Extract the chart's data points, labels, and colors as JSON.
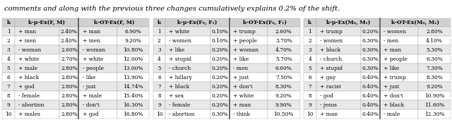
{
  "title_text": "comments and along with the previous three changes cumulatively explains 0.2% of the shift.",
  "tables": [
    {
      "col1_header": "k",
      "col2_header": "k-μ-Ex(F, M)",
      "col3_header": "k-OT-Ex(F, M)",
      "rows": [
        [
          1,
          "+ man",
          "2.40%",
          "+ man",
          "6.90%"
        ],
        [
          2,
          "+ men",
          "2.40%",
          "+ men",
          "9.20%"
        ],
        [
          3,
          "- woman",
          "2.60%",
          "- woman",
          "10.80%"
        ],
        [
          4,
          "+ white",
          "2.70%",
          "+ white",
          "12.00%"
        ],
        [
          5,
          "+ male",
          "2.80%",
          "- people",
          "13.00%"
        ],
        [
          6,
          "+ black",
          "2.80%",
          "- like",
          "13.90%"
        ],
        [
          7,
          "+ god",
          "2.80%",
          "- just",
          "14.74%"
        ],
        [
          8,
          "- female",
          "2.80%",
          "+ male",
          "15.40%"
        ],
        [
          9,
          "- abortion",
          "2.80%",
          "- don't",
          "16.30%"
        ],
        [
          10,
          "+ males",
          "2.80%",
          "+ god",
          "16.80%"
        ]
      ]
    },
    {
      "col1_header": "k",
      "col2_header": "k-μ-Ex(F₀, F₁)",
      "col3_header": "k-OT-Ex(F₀, F₁)",
      "rows": [
        [
          1,
          "+ white",
          "0.10%",
          "+ trump",
          "2.60%"
        ],
        [
          2,
          "- women",
          "0.10%",
          "+ people",
          "3.70%"
        ],
        [
          3,
          "+ like",
          "0.20%",
          "+ woman",
          "4.70%"
        ],
        [
          4,
          "+ stupid",
          "0.20%",
          "+ like",
          "5.70%"
        ],
        [
          5,
          "- church",
          "0.20%",
          "- men",
          "6.60%"
        ],
        [
          6,
          "+ hillary",
          "0.20%",
          "+ just",
          "7.50%"
        ],
        [
          7,
          "+ black",
          "0.20%",
          "+ don't",
          "8.30%"
        ],
        [
          8,
          "+ sex",
          "0.20%",
          "+ white",
          "9.20%"
        ],
        [
          9,
          "- female",
          "0.20%",
          "+ man",
          "9.90%"
        ],
        [
          10,
          "- abortion",
          "0.30%",
          "- think",
          "10.50%"
        ]
      ]
    },
    {
      "col1_header": "k",
      "col2_header": "k-μ-Ex(M₀, M₁)",
      "col3_header": "k-OT-Ex(M₀, M₁)",
      "rows": [
        [
          1,
          "+ trump",
          "0.20%",
          "- women",
          "2.80%"
        ],
        [
          2,
          "- women",
          "0.30%",
          "- men",
          "4.10%"
        ],
        [
          3,
          "+ black",
          "0.30%",
          "+ man",
          "5.30%"
        ],
        [
          4,
          "- church",
          "0.30%",
          "+ people",
          "6.30%"
        ],
        [
          5,
          "+ stupid",
          "0.30%",
          "+ like",
          "7.30%"
        ],
        [
          6,
          "+ gay",
          "0.40%",
          "+ trump",
          "8.30%"
        ],
        [
          7,
          "+ racist",
          "0.40%",
          "+ just",
          "9.20%"
        ],
        [
          8,
          "- god",
          "0.40%",
          "+ don't",
          "10.90%"
        ],
        [
          9,
          "- jesus",
          "0.40%",
          "+ black",
          "11.60%"
        ],
        [
          10,
          "+ man",
          "0.40%",
          "- male",
          "12.30%"
        ]
      ]
    }
  ],
  "row_colors": [
    "#e8e8e8",
    "#ffffff"
  ],
  "header_bg": "#d0d0d0",
  "border_color": "#aaaaaa",
  "sep_color": "#555555",
  "font_size": 5.4,
  "header_font_size": 5.4,
  "title_font_size": 7.2,
  "title_color": "#000000",
  "text_color": "#000000"
}
